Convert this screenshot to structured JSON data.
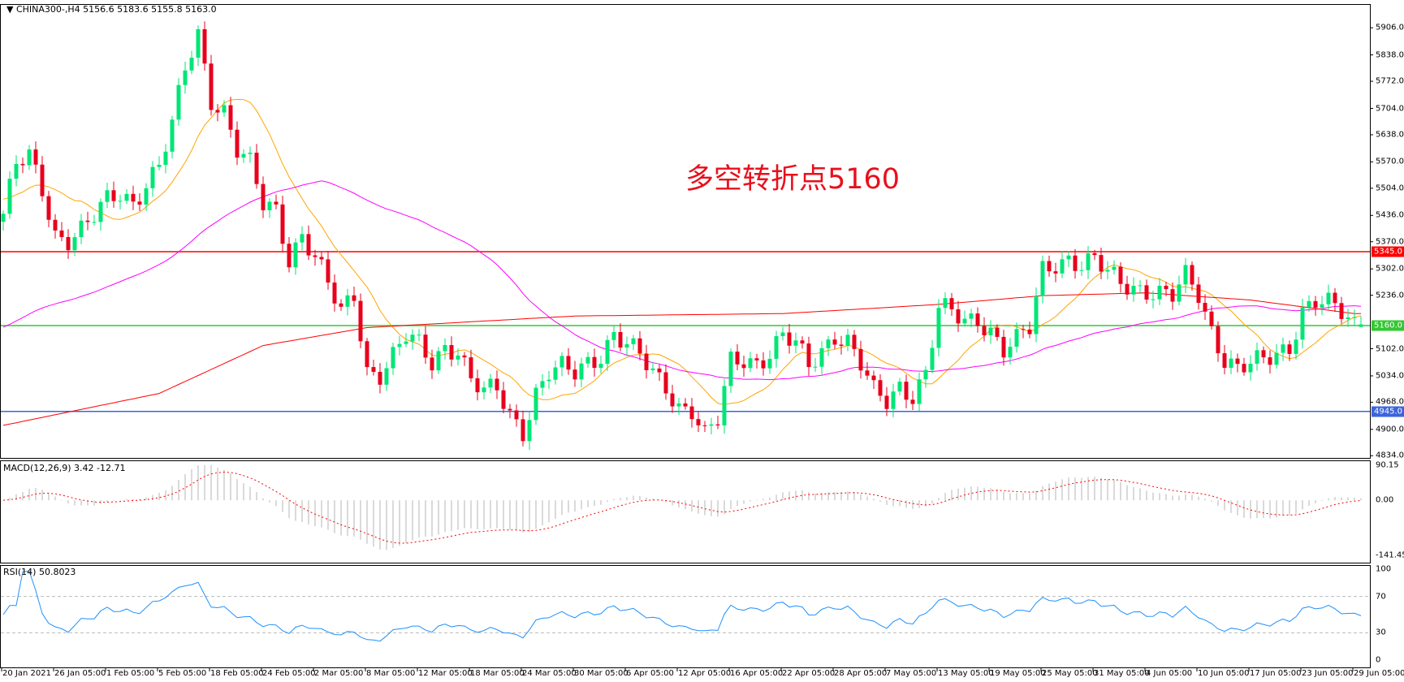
{
  "header": {
    "symbol": "CHINA300-,H4",
    "ohlc": "5156.6 5183.6 5155.8 5163.0"
  },
  "annotation": "多空转折点5160",
  "macd": {
    "label": "MACD(12,26,9) 3.42 -12.71",
    "ticks": [
      "90.15",
      "0.00",
      "-141.45"
    ],
    "max": 90.15,
    "min": -141.45
  },
  "rsi": {
    "label": "RSI(14) 50.8023",
    "ticks": [
      "100",
      "70",
      "30",
      "0"
    ],
    "levels": [
      30,
      70
    ]
  },
  "colors": {
    "up": "#00e676",
    "down": "#e8001c",
    "ma_fast": "#ffa500",
    "ma_mid": "#ff00ff",
    "ma_slow": "#ff0000",
    "macd_hist": "#c0c0c0",
    "macd_signal": "#ff0000",
    "rsi_line": "#1e90ff"
  },
  "chart_data": {
    "type": "candlestick",
    "timeframe": "H4",
    "ylim": [
      4834,
      5906
    ],
    "y_ticks": [
      "5906.0",
      "5838.0",
      "5772.0",
      "5704.0",
      "5638.0",
      "5570.0",
      "5504.0",
      "5436.0",
      "5370.0",
      "5302.0",
      "5236.0",
      "5102.0",
      "5034.0",
      "4968.0",
      "4900.0",
      "4834.0"
    ],
    "x_ticks": [
      "20 Jan 2021",
      "26 Jan 05:00",
      "1 Feb 05:00",
      "5 Feb 05:00",
      "18 Feb 05:00",
      "24 Feb 05:00",
      "2 Mar 05:00",
      "8 Mar 05:00",
      "12 Mar 05:00",
      "18 Mar 05:00",
      "24 Mar 05:00",
      "30 Mar 05:00",
      "6 Apr 05:00",
      "12 Apr 05:00",
      "16 Apr 05:00",
      "22 Apr 05:00",
      "28 Apr 05:00",
      "7 May 05:00",
      "13 May 05:00",
      "19 May 05:00",
      "25 May 05:00",
      "31 May 05:00",
      "4 Jun 05:00",
      "10 Jun 05:00",
      "17 Jun 05:00",
      "23 Jun 05:00",
      "29 Jun 05:00"
    ],
    "horizontal_lines": [
      {
        "value": 5345.0,
        "label": "5345.0",
        "color": "#ff0000"
      },
      {
        "value": 5160.0,
        "label": "5160.0",
        "color": "#32c832"
      },
      {
        "value": 4945.0,
        "label": "4945.0",
        "color": "#3c64dc"
      }
    ],
    "price_path": [
      [
        "2021-01-20",
        5440
      ],
      [
        "2021-01-21",
        5560
      ],
      [
        "2021-01-22",
        5580
      ],
      [
        "2021-01-25",
        5500
      ],
      [
        "2021-01-26",
        5390
      ],
      [
        "2021-01-27",
        5380
      ],
      [
        "2021-01-28",
        5400
      ],
      [
        "2021-01-29",
        5430
      ],
      [
        "2021-02-01",
        5470
      ],
      [
        "2021-02-02",
        5490
      ],
      [
        "2021-02-03",
        5470
      ],
      [
        "2021-02-04",
        5520
      ],
      [
        "2021-02-05",
        5560
      ],
      [
        "2021-02-08",
        5660
      ],
      [
        "2021-02-09",
        5800
      ],
      [
        "2021-02-10",
        5890
      ],
      [
        "2021-02-18",
        5730
      ],
      [
        "2021-02-19",
        5700
      ],
      [
        "2021-02-22",
        5600
      ],
      [
        "2021-02-23",
        5560
      ],
      [
        "2021-02-24",
        5460
      ],
      [
        "2021-02-25",
        5450
      ],
      [
        "2021-02-26",
        5330
      ],
      [
        "2021-03-01",
        5390
      ],
      [
        "2021-03-02",
        5330
      ],
      [
        "2021-03-03",
        5260
      ],
      [
        "2021-03-04",
        5190
      ],
      [
        "2021-03-05",
        5240
      ],
      [
        "2021-03-08",
        5050
      ],
      [
        "2021-03-09",
        5040
      ],
      [
        "2021-03-10",
        5080
      ],
      [
        "2021-03-11",
        5130
      ],
      [
        "2021-03-12",
        5110
      ],
      [
        "2021-03-15",
        5070
      ],
      [
        "2021-03-16",
        5110
      ],
      [
        "2021-03-17",
        5100
      ],
      [
        "2021-03-18",
        5020
      ],
      [
        "2021-03-19",
        4990
      ],
      [
        "2021-03-22",
        5000
      ],
      [
        "2021-03-23",
        4940
      ],
      [
        "2021-03-24",
        4900
      ],
      [
        "2021-03-25",
        4990
      ],
      [
        "2021-03-26",
        5040
      ],
      [
        "2021-03-29",
        5050
      ],
      [
        "2021-03-30",
        5040
      ],
      [
        "2021-03-31",
        5070
      ],
      [
        "2021-04-01",
        5090
      ],
      [
        "2021-04-02",
        5140
      ],
      [
        "2021-04-06",
        5110
      ],
      [
        "2021-04-07",
        5080
      ],
      [
        "2021-04-08",
        5040
      ],
      [
        "2021-04-09",
        5010
      ],
      [
        "2021-04-12",
        4960
      ],
      [
        "2021-04-13",
        4950
      ],
      [
        "2021-04-14",
        4880
      ],
      [
        "2021-04-15",
        4920
      ],
      [
        "2021-04-16",
        5070
      ],
      [
        "2021-04-19",
        5080
      ],
      [
        "2021-04-20",
        5070
      ],
      [
        "2021-04-21",
        5090
      ],
      [
        "2021-04-22",
        5130
      ],
      [
        "2021-04-23",
        5110
      ],
      [
        "2021-04-26",
        5060
      ],
      [
        "2021-04-27",
        5100
      ],
      [
        "2021-04-28",
        5140
      ],
      [
        "2021-04-29",
        5120
      ],
      [
        "2021-04-30",
        5060
      ],
      [
        "2021-05-06",
        4990
      ],
      [
        "2021-05-07",
        4970
      ],
      [
        "2021-05-10",
        5010
      ],
      [
        "2021-05-11",
        4990
      ],
      [
        "2021-05-12",
        5040
      ],
      [
        "2021-05-13",
        5200
      ],
      [
        "2021-05-14",
        5190
      ],
      [
        "2021-05-17",
        5170
      ],
      [
        "2021-05-18",
        5180
      ],
      [
        "2021-05-19",
        5150
      ],
      [
        "2021-05-20",
        5100
      ],
      [
        "2021-05-21",
        5120
      ],
      [
        "2021-05-24",
        5150
      ],
      [
        "2021-05-25",
        5300
      ],
      [
        "2021-05-26",
        5320
      ],
      [
        "2021-05-27",
        5330
      ],
      [
        "2021-05-28",
        5310
      ],
      [
        "2021-05-31",
        5320
      ],
      [
        "2021-06-01",
        5290
      ],
      [
        "2021-06-02",
        5270
      ],
      [
        "2021-06-03",
        5260
      ],
      [
        "2021-06-04",
        5250
      ],
      [
        "2021-06-07",
        5240
      ],
      [
        "2021-06-08",
        5230
      ],
      [
        "2021-06-09",
        5280
      ],
      [
        "2021-06-10",
        5240
      ],
      [
        "2021-06-11",
        5150
      ],
      [
        "2021-06-15",
        5080
      ],
      [
        "2021-06-16",
        5050
      ],
      [
        "2021-06-17",
        5060
      ],
      [
        "2021-06-18",
        5070
      ],
      [
        "2021-06-21",
        5090
      ],
      [
        "2021-06-22",
        5110
      ],
      [
        "2021-06-23",
        5200
      ],
      [
        "2021-06-24",
        5220
      ],
      [
        "2021-06-25",
        5210
      ],
      [
        "2021-06-28",
        5190
      ],
      [
        "2021-06-29",
        5163
      ]
    ],
    "ma_slow_path": [
      [
        "2021-01-20",
        4910
      ],
      [
        "2021-02-05",
        4990
      ],
      [
        "2021-02-24",
        5110
      ],
      [
        "2021-03-08",
        5155
      ],
      [
        "2021-03-30",
        5184
      ],
      [
        "2021-04-22",
        5190
      ],
      [
        "2021-05-13",
        5213
      ],
      [
        "2021-05-25",
        5235
      ],
      [
        "2021-06-04",
        5242
      ],
      [
        "2021-06-17",
        5224
      ],
      [
        "2021-06-29",
        5190
      ]
    ]
  }
}
